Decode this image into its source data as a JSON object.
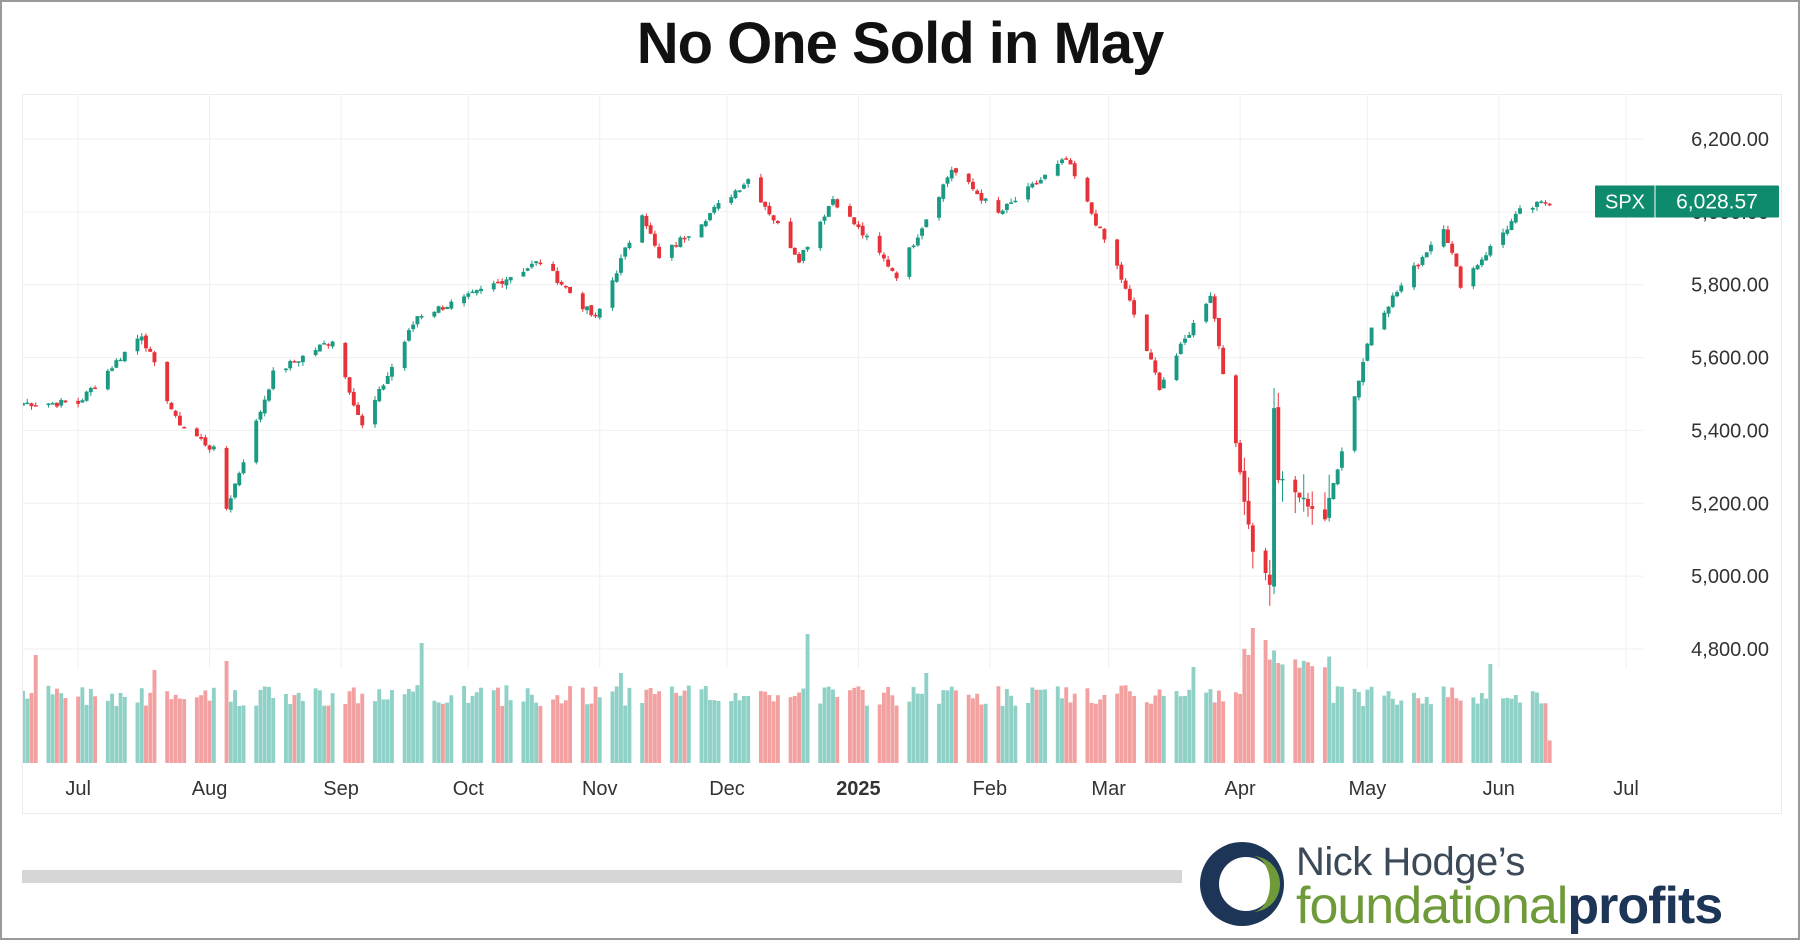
{
  "title": "No One Sold in May",
  "logo": {
    "line1": "Nick Hodge’s",
    "word1": "foundational",
    "word2": "profits"
  },
  "colors": {
    "up": "#1a9a82",
    "down": "#e8323a",
    "volUp": "#8fd1c6",
    "volDown": "#f2a0a0",
    "badge": "#0e8a6c",
    "grid": "#efefef",
    "axisText": "#333333"
  },
  "chart_data": {
    "type": "candlestick",
    "ticker": "SPX",
    "last_price": "6,028.57",
    "y_ticks": [
      "6,200.00",
      "6,000.00",
      "5,800.00",
      "5,600.00",
      "5,400.00",
      "5,200.00",
      "5,000.00",
      "4,800.00"
    ],
    "y_tick_values": [
      6200,
      6000,
      5800,
      5600,
      5400,
      5200,
      5000,
      4800
    ],
    "ylim": [
      4700,
      6300
    ],
    "x_ticks": [
      "Jul",
      "Aug",
      "Sep",
      "Oct",
      "Nov",
      "Dec",
      "2025",
      "Feb",
      "Mar",
      "Apr",
      "May",
      "Jun",
      "Jul"
    ],
    "x_range": [
      "2024-06-18",
      "2025-07-05"
    ],
    "anchors": [
      [
        "2024-06-20",
        5475
      ],
      [
        "2024-07-01",
        5475
      ],
      [
        "2024-07-16",
        5665
      ],
      [
        "2024-07-24",
        5430
      ],
      [
        "2024-08-02",
        5345
      ],
      [
        "2024-08-05",
        5186
      ],
      [
        "2024-08-16",
        5555
      ],
      [
        "2024-08-30",
        5650
      ],
      [
        "2024-09-06",
        5410
      ],
      [
        "2024-09-19",
        5715
      ],
      [
        "2024-09-30",
        5760
      ],
      [
        "2024-10-18",
        5865
      ],
      [
        "2024-10-31",
        5705
      ],
      [
        "2024-11-11",
        6001
      ],
      [
        "2024-11-15",
        5870
      ],
      [
        "2024-12-06",
        6090
      ],
      [
        "2024-12-18",
        5872
      ],
      [
        "2024-12-26",
        6037
      ],
      [
        "2025-01-10",
        5827
      ],
      [
        "2025-01-23",
        6118
      ],
      [
        "2025-02-03",
        5994
      ],
      [
        "2025-02-19",
        6144
      ],
      [
        "2025-03-03",
        5849
      ],
      [
        "2025-03-13",
        5521
      ],
      [
        "2025-03-25",
        5776
      ],
      [
        "2025-04-04",
        5074
      ],
      [
        "2025-04-08",
        4982
      ],
      [
        "2025-04-09",
        5456
      ],
      [
        "2025-04-10",
        5268
      ],
      [
        "2025-04-21",
        5158
      ],
      [
        "2025-05-02",
        5686
      ],
      [
        "2025-05-12",
        5844
      ],
      [
        "2025-05-19",
        5963
      ],
      [
        "2025-05-23",
        5802
      ],
      [
        "2025-06-06",
        6000
      ],
      [
        "2025-06-11",
        6022
      ],
      [
        "2025-06-13",
        6028.57
      ]
    ],
    "volume_spikes": [
      [
        "2024-06-21",
        0.72
      ],
      [
        "2024-07-19",
        0.62
      ],
      [
        "2024-08-05",
        0.68
      ],
      [
        "2024-09-20",
        0.8
      ],
      [
        "2024-11-06",
        0.6
      ],
      [
        "2024-12-20",
        0.86
      ],
      [
        "2025-01-17",
        0.6
      ],
      [
        "2025-03-21",
        0.64
      ],
      [
        "2025-04-04",
        0.9
      ],
      [
        "2025-04-07",
        0.82
      ],
      [
        "2025-04-09",
        0.75
      ],
      [
        "2025-05-30",
        0.66
      ],
      [
        "2025-06-13",
        0.15
      ]
    ]
  }
}
